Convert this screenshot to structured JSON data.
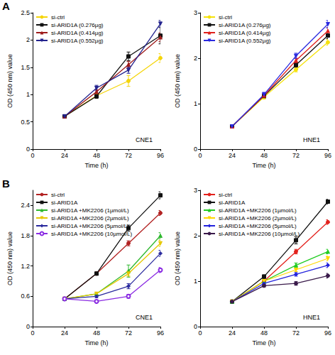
{
  "panel_labels": [
    "A",
    "B"
  ],
  "chart_data": [
    {
      "type": "line",
      "panel": "A",
      "title": "CNE1",
      "x_label": "Time (h)",
      "y_label": "OD (450 nm) value",
      "x": [
        24,
        48,
        72,
        96
      ],
      "xlim": [
        0,
        96
      ],
      "xticks": [
        0,
        24,
        48,
        72,
        96
      ],
      "ylim": [
        0,
        2.5
      ],
      "yticks": [
        0,
        0.5,
        1,
        1.5,
        2,
        2.5
      ],
      "grid": false,
      "legend": "top-left",
      "series": [
        {
          "name": "si-ctrl",
          "color": "#f5d50a",
          "marker": "circle",
          "values": [
            0.6,
            0.98,
            1.25,
            1.67
          ],
          "errors": [
            0.03,
            0.04,
            0.1,
            0.08
          ]
        },
        {
          "name": "si-ARID1A (0.276µg)",
          "color": "#111111",
          "marker": "square",
          "values": [
            0.6,
            0.97,
            1.7,
            2.08
          ],
          "errors": [
            0.03,
            0.04,
            0.08,
            0.15
          ]
        },
        {
          "name": "si-ARID1A (0.414µg)",
          "color": "#9e1b1b",
          "marker": "triangle",
          "values": [
            0.6,
            1.05,
            1.55,
            2.05
          ],
          "errors": [
            0.03,
            0.04,
            0.06,
            0.08
          ]
        },
        {
          "name": "si-ARID1A (0.552µg)",
          "color": "#23238e",
          "marker": "triangle-down",
          "values": [
            0.6,
            1.12,
            1.45,
            2.3
          ],
          "errors": [
            0.03,
            0.05,
            0.06,
            0.06
          ]
        }
      ]
    },
    {
      "type": "line",
      "panel": "A",
      "title": "HNE1",
      "x_label": "Time (h)",
      "y_label": "OD (450 nm) value",
      "x": [
        24,
        48,
        72,
        96
      ],
      "xlim": [
        0,
        96
      ],
      "xticks": [
        0,
        24,
        48,
        72,
        96
      ],
      "ylim": [
        0,
        3
      ],
      "yticks": [
        0,
        1,
        2,
        3
      ],
      "grid": false,
      "legend": "top-left",
      "series": [
        {
          "name": "si-ctrl",
          "color": "#f5e20a",
          "marker": "circle",
          "values": [
            0.5,
            1.15,
            1.75,
            2.35
          ],
          "errors": [
            0.03,
            0.05,
            0.05,
            0.06
          ]
        },
        {
          "name": "si-ARID1A (0.276µg)",
          "color": "#111111",
          "marker": "square",
          "values": [
            0.5,
            1.17,
            1.85,
            2.5
          ],
          "errors": [
            0.03,
            0.05,
            0.05,
            0.07
          ]
        },
        {
          "name": "si-ARID1A (0.414µg)",
          "color": "#e0211c",
          "marker": "triangle",
          "values": [
            0.5,
            1.18,
            1.95,
            2.6
          ],
          "errors": [
            0.03,
            0.05,
            0.05,
            0.07
          ]
        },
        {
          "name": "si-ARID1A (0.552µg)",
          "color": "#2a2ae0",
          "marker": "triangle-down",
          "values": [
            0.5,
            1.2,
            2.05,
            2.75
          ],
          "errors": [
            0.03,
            0.05,
            0.06,
            0.08
          ]
        }
      ]
    },
    {
      "type": "line",
      "panel": "B",
      "title": "CNE1",
      "x_label": "Time (h)",
      "y_label": "OD (450 nm) value",
      "x": [
        24,
        48,
        72,
        96
      ],
      "xlim": [
        0,
        96
      ],
      "xticks": [
        0,
        24,
        48,
        72,
        96
      ],
      "ylim": [
        0,
        2.7
      ],
      "yticks": [
        0,
        0.6,
        1.2,
        1.8,
        2.4
      ],
      "grid": false,
      "legend": "top-left",
      "series": [
        {
          "name": "si-ctrl",
          "color": "#b22222",
          "marker": "circle",
          "values": [
            0.55,
            1.05,
            1.65,
            2.25
          ],
          "errors": [
            0.02,
            0.03,
            0.05,
            0.05
          ]
        },
        {
          "name": "si-ARID1A",
          "color": "#111111",
          "marker": "square",
          "values": [
            0.55,
            1.05,
            1.95,
            2.6
          ],
          "errors": [
            0.02,
            0.03,
            0.06,
            0.07
          ]
        },
        {
          "name": "si-ARID1A +MK2206 (1µmol/L)",
          "color": "#2eb82e",
          "marker": "triangle",
          "values": [
            0.55,
            0.65,
            1.1,
            1.8
          ],
          "errors": [
            0.02,
            0.03,
            0.12,
            0.06
          ]
        },
        {
          "name": "si-ARID1A +MK2206 (2µmol/L)",
          "color": "#e6c800",
          "marker": "triangle-down",
          "values": [
            0.55,
            0.65,
            1.05,
            1.65
          ],
          "errors": [
            0.02,
            0.03,
            0.05,
            0.06
          ]
        },
        {
          "name": "si-ARID1A +MK2206 (5µmol/L)",
          "color": "#2a2a9e",
          "marker": "diamond",
          "values": [
            0.55,
            0.6,
            0.8,
            1.45
          ],
          "errors": [
            0.02,
            0.03,
            0.05,
            0.06
          ]
        },
        {
          "name": "si-ARID1A +MK2206 (10µmol/L)",
          "color": "#8a2be2",
          "marker": "open-circle",
          "values": [
            0.55,
            0.5,
            0.6,
            1.12
          ],
          "errors": [
            0.02,
            0.03,
            0.04,
            0.05
          ]
        }
      ]
    },
    {
      "type": "line",
      "panel": "B",
      "title": "HNE1",
      "x_label": "Time (h)",
      "y_label": "OD (450 nm) value",
      "x": [
        24,
        48,
        72,
        96
      ],
      "xlim": [
        0,
        96
      ],
      "xticks": [
        0,
        24,
        48,
        72,
        96
      ],
      "ylim": [
        0,
        3
      ],
      "yticks": [
        0,
        1,
        2,
        3
      ],
      "grid": false,
      "legend": "top-left",
      "series": [
        {
          "name": "si-ctrl",
          "color": "#e3211c",
          "marker": "circle",
          "values": [
            0.55,
            1.0,
            1.65,
            2.3
          ],
          "errors": [
            0.02,
            0.03,
            0.05,
            0.05
          ]
        },
        {
          "name": "si-ARID1A",
          "color": "#111111",
          "marker": "square",
          "values": [
            0.55,
            1.1,
            1.9,
            2.75
          ],
          "errors": [
            0.02,
            0.04,
            0.08,
            0.05
          ]
        },
        {
          "name": "si-ARID1A +MK2206 (1µmol/L)",
          "color": "#22cc22",
          "marker": "triangle",
          "values": [
            0.55,
            1.0,
            1.35,
            1.65
          ],
          "errors": [
            0.02,
            0.03,
            0.05,
            0.05
          ]
        },
        {
          "name": "si-ARID1A +MK2206 (2µmol/L)",
          "color": "#ffd800",
          "marker": "triangle-down",
          "values": [
            0.55,
            1.0,
            1.25,
            1.5
          ],
          "errors": [
            0.02,
            0.03,
            0.04,
            0.05
          ]
        },
        {
          "name": "si-ARID1A +MK2206 (5µmol/L)",
          "color": "#2222dd",
          "marker": "diamond",
          "values": [
            0.55,
            0.95,
            1.15,
            1.35
          ],
          "errors": [
            0.02,
            0.03,
            0.04,
            0.05
          ]
        },
        {
          "name": "si-ARID1A +MK2206 (10µmol/L)",
          "color": "#3a1a4a",
          "marker": "circle",
          "values": [
            0.55,
            0.9,
            0.95,
            1.12
          ],
          "errors": [
            0.02,
            0.03,
            0.04,
            0.05
          ]
        }
      ]
    }
  ]
}
